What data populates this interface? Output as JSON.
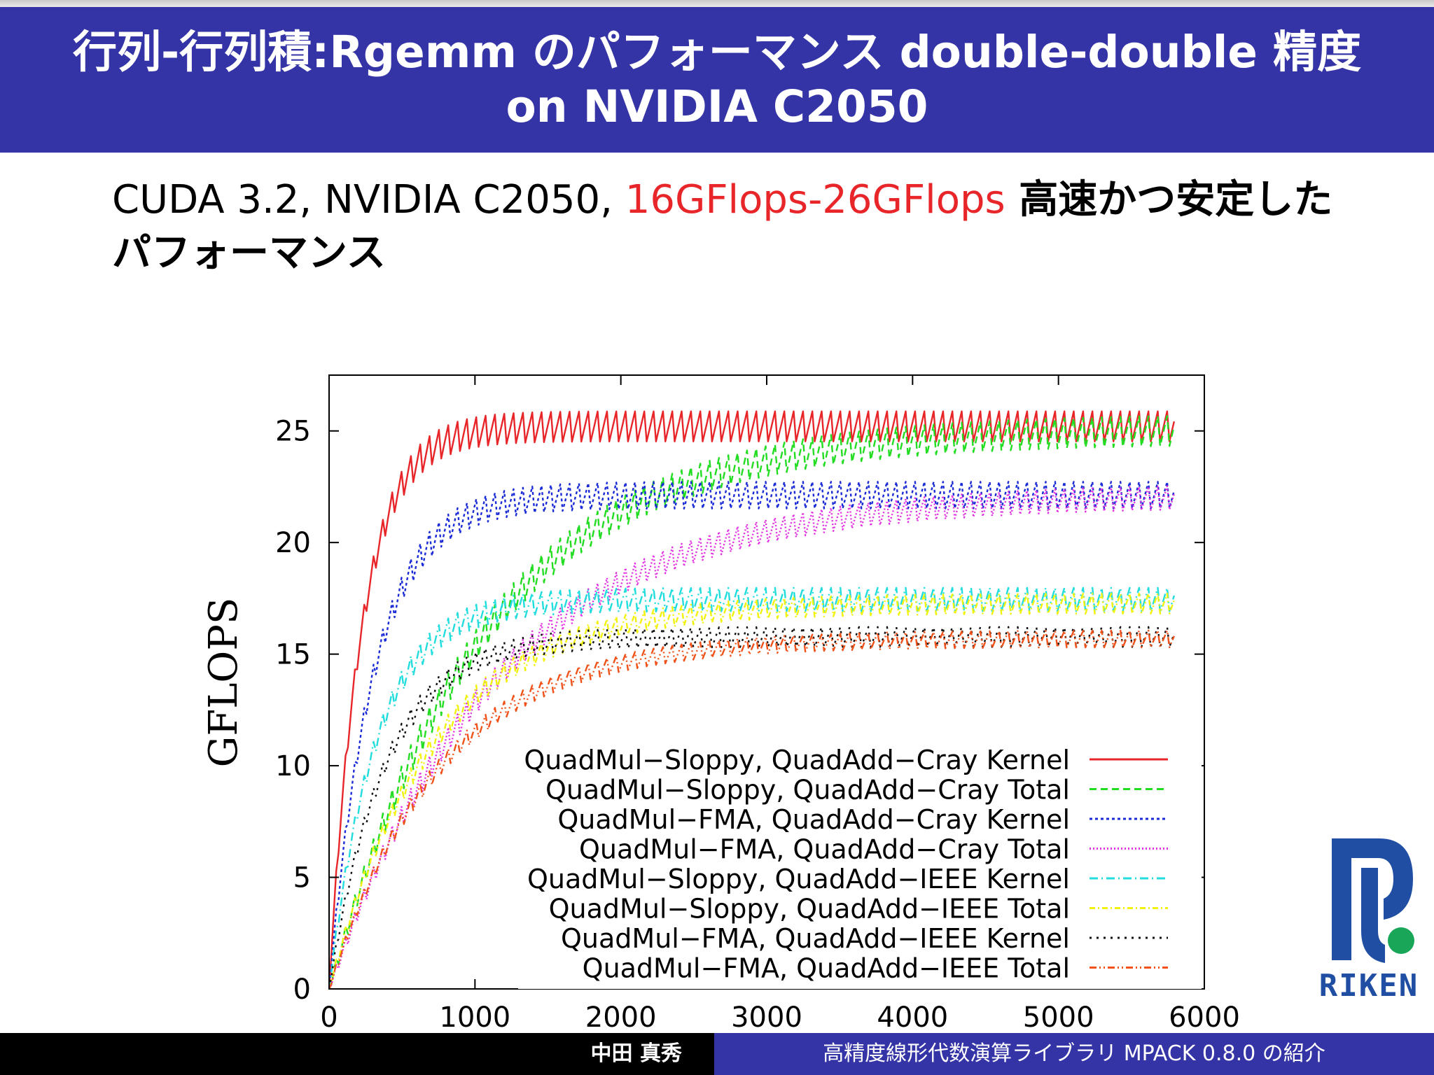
{
  "slide": {
    "title": "行列-行列積:Rgemm のパフォーマンス double-double 精度 on NVIDIA C2050",
    "subtitle_prefix": "CUDA 3.2, NVIDIA C2050, ",
    "subtitle_highlight": "16GFlops-26GFlops",
    "subtitle_suffix": " 高速かつ安定したパフォーマンス",
    "footer_author": "中田 真秀",
    "footer_talk": "高精度線形代数演算ライブラリ MPACK 0.8.0 の紹介",
    "logo_text": "RIKEN"
  },
  "colors": {
    "title_bar": "#3434a6",
    "highlight": "#e8262a",
    "logo_blue": "#1f4ea3",
    "logo_green": "#19a659"
  },
  "chart_data": {
    "type": "line",
    "title": "",
    "xlabel": "",
    "ylabel": "GFLOPS",
    "xlim": [
      0,
      6000
    ],
    "ylim": [
      0,
      27.5
    ],
    "xticks": [
      0,
      1000,
      2000,
      3000,
      4000,
      5000,
      6000
    ],
    "yticks": [
      0,
      5,
      10,
      15,
      20,
      25
    ],
    "grid": false,
    "legend": "bottom-right",
    "x_start": 1,
    "x_end": 5800,
    "sawtooth_period": 64,
    "series": [
      {
        "name": "QuadMul−Sloppy, QuadAdd−Cray Kernel",
        "color": "#e8262a",
        "dash": "none",
        "plateau": 25.4,
        "rate": 220,
        "amplitude": 0.9,
        "x": [
          1,
          128,
          256,
          512,
          1000,
          2000,
          3000,
          4000,
          5000,
          5800
        ],
        "values": [
          0.3,
          17.0,
          20.2,
          23.3,
          24.5,
          24.9,
          25.1,
          25.3,
          25.3,
          25.4
        ]
      },
      {
        "name": "QuadMul−Sloppy, QuadAdd−Cray Total",
        "color": "#22dd22",
        "dash": "10,6",
        "plateau": 25.3,
        "rate": 1050,
        "amplitude": 0.9,
        "x": [
          1,
          128,
          256,
          512,
          1000,
          2000,
          3000,
          4000,
          5000,
          5800
        ],
        "values": [
          0.3,
          2.8,
          5.3,
          9.6,
          15.5,
          21.0,
          23.5,
          24.5,
          25.0,
          25.1
        ]
      },
      {
        "name": "QuadMul−FMA, QuadAdd−Cray Kernel",
        "color": "#1b2bd6",
        "dash": "4,4",
        "plateau": 22.3,
        "rate": 300,
        "amplitude": 0.8,
        "x": [
          1,
          128,
          256,
          512,
          1000,
          2000,
          3000,
          4000,
          5000,
          5800
        ],
        "values": [
          0.3,
          7.5,
          12.2,
          17.4,
          20.6,
          21.9,
          22.2,
          22.3,
          22.3,
          22.3
        ]
      },
      {
        "name": "QuadMul−FMA, QuadAdd−Cray Total",
        "color": "#e22ee2",
        "dash": "2,3",
        "plateau": 22.3,
        "rate": 1150,
        "amplitude": 0.7,
        "x": [
          1,
          128,
          256,
          512,
          1000,
          2000,
          3000,
          4000,
          5000,
          5800
        ],
        "values": [
          0.3,
          2.3,
          4.4,
          8.2,
          13.7,
          19.1,
          21.2,
          21.7,
          22.0,
          22.1
        ]
      },
      {
        "name": "QuadMul−Sloppy, QuadAdd−IEEE Kernel",
        "color": "#22dddd",
        "dash": "12,5,2,5",
        "plateau": 17.6,
        "rate": 320,
        "amplitude": 0.7,
        "x": [
          1,
          128,
          256,
          512,
          1000,
          2000,
          3000,
          4000,
          5000,
          5800
        ],
        "values": [
          0.3,
          5.6,
          9.2,
          13.2,
          16.1,
          17.3,
          17.5,
          17.6,
          17.6,
          17.6
        ]
      },
      {
        "name": "QuadMul−Sloppy, QuadAdd−IEEE Total",
        "color": "#f2f20f",
        "dash": "8,4,2,4",
        "plateau": 17.4,
        "rate": 700,
        "amplitude": 0.6,
        "x": [
          1,
          128,
          256,
          512,
          1000,
          2000,
          3000,
          4000,
          5000,
          5800
        ],
        "values": [
          0.3,
          2.9,
          5.3,
          9.0,
          13.0,
          15.9,
          16.9,
          17.2,
          17.3,
          17.4
        ]
      },
      {
        "name": "QuadMul−FMA, QuadAdd−IEEE Kernel",
        "color": "#111111",
        "dash": "3,7",
        "plateau": 15.9,
        "rate": 380,
        "amplitude": 0.6,
        "x": [
          1,
          128,
          256,
          512,
          1000,
          2000,
          3000,
          4000,
          5000,
          5800
        ],
        "values": [
          0.3,
          4.6,
          7.7,
          11.3,
          14.4,
          15.6,
          15.8,
          15.9,
          15.9,
          15.9
        ]
      },
      {
        "name": "QuadMul−FMA, QuadAdd−IEEE Total",
        "color": "#f0521a",
        "dash": "10,4,2,4,2,4",
        "plateau": 15.8,
        "rate": 750,
        "amplitude": 0.5,
        "x": [
          1,
          128,
          256,
          512,
          1000,
          2000,
          3000,
          4000,
          5000,
          5800
        ],
        "values": [
          0.3,
          2.5,
          4.6,
          8.0,
          11.4,
          14.4,
          15.3,
          15.6,
          15.7,
          15.8
        ]
      }
    ]
  }
}
